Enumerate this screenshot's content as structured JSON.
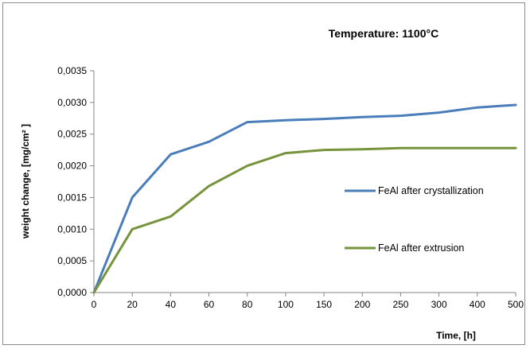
{
  "chart_data": {
    "type": "line",
    "title": "Temperature: 1100°C",
    "xlabel": "Time, [h]",
    "ylabel": "weight change,  [mg/cm² ]",
    "categories": [
      "0",
      "20",
      "40",
      "60",
      "80",
      "100",
      "150",
      "200",
      "250",
      "300",
      "400",
      "500"
    ],
    "ylim": [
      0,
      0.0035
    ],
    "y_ticks": [
      "0,0000",
      "0,0005",
      "0,0010",
      "0,0015",
      "0,0020",
      "0,0025",
      "0,0030",
      "0,0035"
    ],
    "y_tick_values": [
      0,
      0.0005,
      0.001,
      0.0015,
      0.002,
      0.0025,
      0.003,
      0.0035
    ],
    "grid": false,
    "legend_position": "right",
    "series": [
      {
        "name": "FeAl after crystallization",
        "color": "#4a7ebb",
        "values": [
          0,
          0.0015,
          0.00218,
          0.00238,
          0.00269,
          0.00272,
          0.00274,
          0.00277,
          0.00279,
          0.00284,
          0.00292,
          0.00296
        ]
      },
      {
        "name": "FeAl after extrusion",
        "color": "#77933c",
        "values": [
          0,
          0.001,
          0.0012,
          0.00168,
          0.002,
          0.0022,
          0.00225,
          0.00226,
          0.00228,
          0.00228,
          0.00228,
          0.00228
        ]
      }
    ]
  }
}
